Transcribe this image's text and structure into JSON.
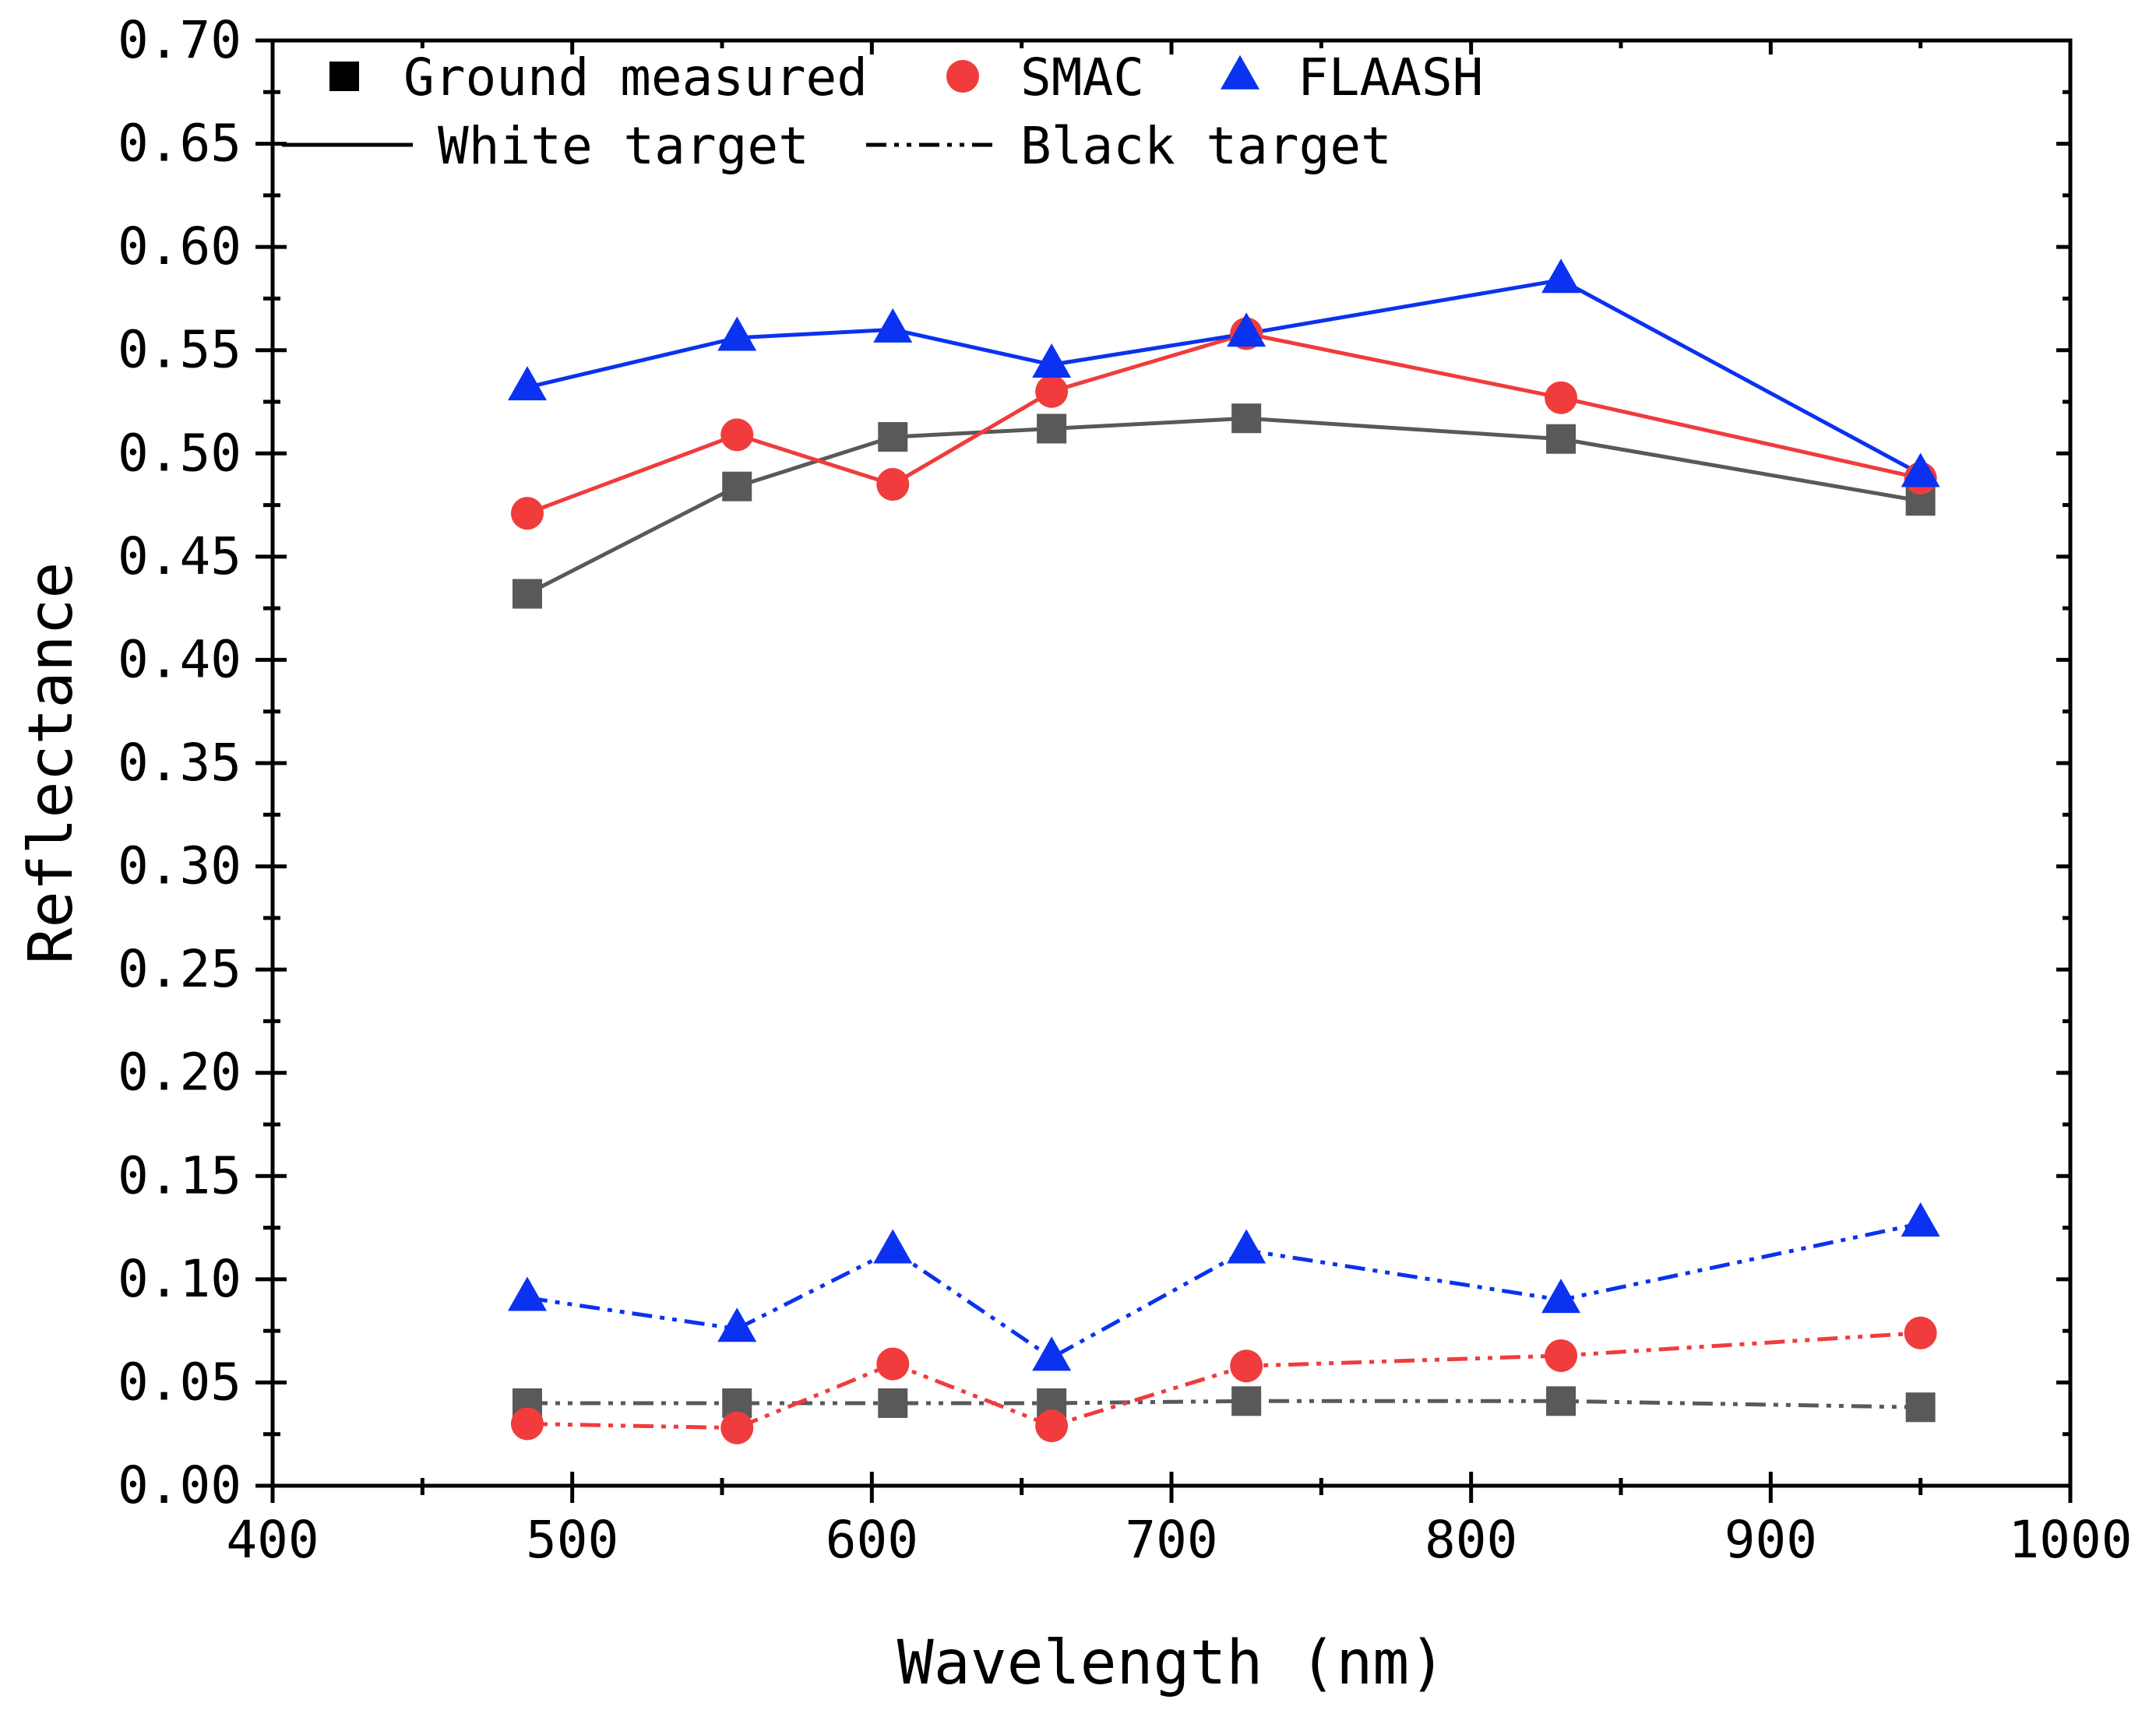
{
  "chart_data": {
    "type": "line",
    "xlabel": "Wavelength (nm)",
    "ylabel": "Reflectance",
    "xlim": [
      400,
      1000
    ],
    "ylim": [
      0.0,
      0.7
    ],
    "x_ticks": [
      400,
      500,
      600,
      700,
      800,
      900,
      1000
    ],
    "x_tick_labels": [
      "400",
      "500",
      "600",
      "700",
      "800",
      "900",
      "1000"
    ],
    "y_ticks": [
      0.0,
      0.05,
      0.1,
      0.15,
      0.2,
      0.25,
      0.3,
      0.35,
      0.4,
      0.45,
      0.5,
      0.55,
      0.6,
      0.65,
      0.7
    ],
    "y_tick_labels": [
      "0.00",
      "0.05",
      "0.10",
      "0.15",
      "0.20",
      "0.25",
      "0.30",
      "0.35",
      "0.40",
      "0.45",
      "0.50",
      "0.55",
      "0.60",
      "0.65",
      "0.70"
    ],
    "x": [
      485,
      555,
      607,
      660,
      725,
      830,
      950
    ],
    "series": [
      {
        "name": "Ground measured — White target",
        "source": "Ground measured",
        "target": "White target",
        "color": "#595959",
        "marker": "square",
        "line": "solid",
        "values": [
          0.432,
          0.484,
          0.508,
          0.512,
          0.517,
          0.507,
          0.477
        ]
      },
      {
        "name": "SMAC — White target",
        "source": "SMAC",
        "target": "White target",
        "color": "#f03c3c",
        "marker": "circle",
        "line": "solid",
        "values": [
          0.471,
          0.509,
          0.485,
          0.53,
          0.558,
          0.527,
          0.488
        ]
      },
      {
        "name": "FLAASH — White target",
        "source": "FLAASH",
        "target": "White target",
        "color": "#0a32f0",
        "marker": "triangle",
        "line": "solid",
        "values": [
          0.532,
          0.556,
          0.56,
          0.543,
          0.558,
          0.584,
          0.49
        ]
      },
      {
        "name": "Ground measured — Black target",
        "source": "Ground measured",
        "target": "Black target",
        "color": "#595959",
        "marker": "square",
        "line": "dashdotdot",
        "values": [
          0.04,
          0.04,
          0.04,
          0.04,
          0.041,
          0.041,
          0.038
        ]
      },
      {
        "name": "SMAC — Black target",
        "source": "SMAC",
        "target": "Black target",
        "color": "#f03c3c",
        "marker": "circle",
        "line": "dashdotdot",
        "values": [
          0.03,
          0.028,
          0.059,
          0.029,
          0.058,
          0.063,
          0.074
        ]
      },
      {
        "name": "FLAASH — Black target",
        "source": "FLAASH",
        "target": "Black target",
        "color": "#0a32f0",
        "marker": "triangle",
        "line": "dashdotdot",
        "values": [
          0.091,
          0.076,
          0.114,
          0.062,
          0.114,
          0.09,
          0.127
        ]
      }
    ],
    "legend": {
      "placement": "top-left",
      "markers": [
        {
          "label": "Ground measured",
          "marker": "square",
          "color": "#000000"
        },
        {
          "label": "SMAC",
          "marker": "circle",
          "color": "#f03c3c"
        },
        {
          "label": "FLAASH",
          "marker": "triangle",
          "color": "#0a32f0"
        }
      ],
      "lines": [
        {
          "label": "White target",
          "line": "solid"
        },
        {
          "label": "Black target",
          "line": "dashdotdot"
        }
      ]
    }
  }
}
